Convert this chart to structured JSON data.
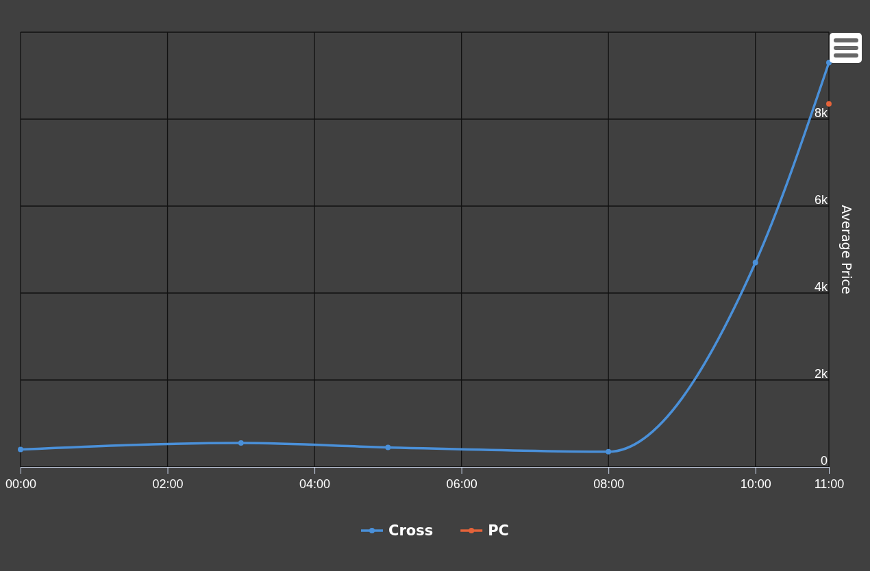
{
  "chart_data": {
    "type": "line",
    "ylabel": "Average Price",
    "x": [
      0,
      3,
      5,
      8,
      10,
      11
    ],
    "xlim": [
      0,
      11
    ],
    "xticks": [
      {
        "value": 0,
        "label": "00:00"
      },
      {
        "value": 2,
        "label": "02:00"
      },
      {
        "value": 4,
        "label": "04:00"
      },
      {
        "value": 6,
        "label": "06:00"
      },
      {
        "value": 8,
        "label": "08:00"
      },
      {
        "value": 10,
        "label": "10:00"
      },
      {
        "value": 11,
        "label": "11:00"
      }
    ],
    "ylim": [
      0,
      10000
    ],
    "yticks": [
      0,
      {
        "value": 2000,
        "label": "2k"
      },
      {
        "value": 4000,
        "label": "4k"
      },
      {
        "value": 6000,
        "label": "6k"
      },
      {
        "value": 8000,
        "label": "8k"
      },
      {
        "value": 10000,
        "label": null
      }
    ],
    "series": [
      {
        "name": "Cross",
        "color": "#4a90d9",
        "values": [
          400,
          550,
          450,
          350,
          4700,
          9300
        ]
      },
      {
        "name": "PC",
        "color": "#e4633a",
        "values": [
          null,
          null,
          null,
          null,
          null,
          8350
        ]
      }
    ],
    "grid": true,
    "legend": "bottom",
    "marker": "circle",
    "line_style": "solid"
  }
}
